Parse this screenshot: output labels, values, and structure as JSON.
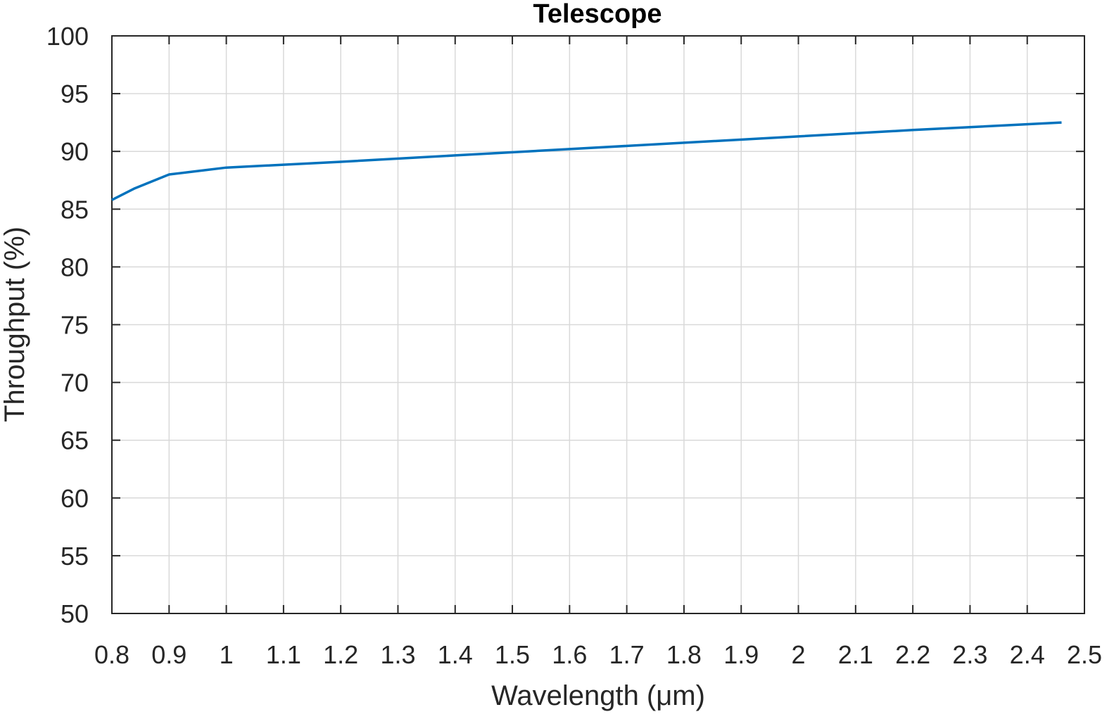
{
  "chart_data": {
    "type": "line",
    "title": "Telescope",
    "xlabel": "Wavelength (μm)",
    "ylabel": "Throughput (%)",
    "xlim": [
      0.8,
      2.5
    ],
    "ylim": [
      50,
      100
    ],
    "xticks": [
      "0.8",
      "0.9",
      "1",
      "1.1",
      "1.2",
      "1.3",
      "1.4",
      "1.5",
      "1.6",
      "1.7",
      "1.8",
      "1.9",
      "2",
      "2.1",
      "2.2",
      "2.3",
      "2.4",
      "2.5"
    ],
    "yticks": [
      "50",
      "55",
      "60",
      "65",
      "70",
      "75",
      "80",
      "85",
      "90",
      "95",
      "100"
    ],
    "grid": true,
    "series": [
      {
        "color": "#0072BD",
        "x": [
          0.8,
          0.84,
          0.9,
          0.95,
          1.0,
          1.2,
          1.4,
          1.6,
          1.8,
          2.0,
          2.2,
          2.46
        ],
        "y": [
          85.8,
          86.8,
          88.0,
          88.3,
          88.6,
          89.1,
          89.65,
          90.2,
          90.75,
          91.3,
          91.85,
          92.5
        ]
      }
    ]
  }
}
